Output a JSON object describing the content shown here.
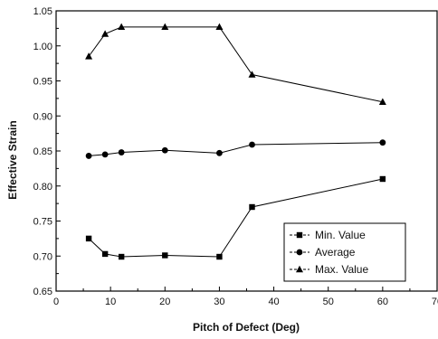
{
  "chart_data": {
    "type": "line",
    "title": "",
    "xlabel": "Pitch of Defect (Deg)",
    "ylabel": "Effective Strain",
    "xlim": [
      0,
      70
    ],
    "ylim": [
      0.65,
      1.05
    ],
    "xticks": [
      0,
      10,
      20,
      30,
      40,
      50,
      60,
      70
    ],
    "yticks": [
      0.65,
      0.7,
      0.75,
      0.8,
      0.85,
      0.9,
      0.95,
      1.0,
      1.05
    ],
    "xtick_labels": [
      "0",
      "10",
      "20",
      "30",
      "40",
      "50",
      "60",
      "70"
    ],
    "ytick_labels": [
      "0.65",
      "0.70",
      "0.75",
      "0.80",
      "0.85",
      "0.90",
      "0.95",
      "1.00",
      "1.05"
    ],
    "x": [
      6,
      9,
      12,
      20,
      30,
      36,
      60
    ],
    "grid": false,
    "legend_position": "bottom-right",
    "series": [
      {
        "name": "Min. Value",
        "marker": "square",
        "values": [
          0.725,
          0.703,
          0.699,
          0.701,
          0.699,
          0.77,
          0.81
        ]
      },
      {
        "name": "Average",
        "marker": "circle",
        "values": [
          0.843,
          0.845,
          0.848,
          0.851,
          0.847,
          0.859,
          0.862
        ]
      },
      {
        "name": "Max. Value",
        "marker": "triangle",
        "values": [
          0.985,
          1.017,
          1.027,
          1.027,
          1.027,
          0.959,
          0.92
        ]
      }
    ],
    "colors": {
      "line": "#000000",
      "background": "#ffffff"
    }
  }
}
